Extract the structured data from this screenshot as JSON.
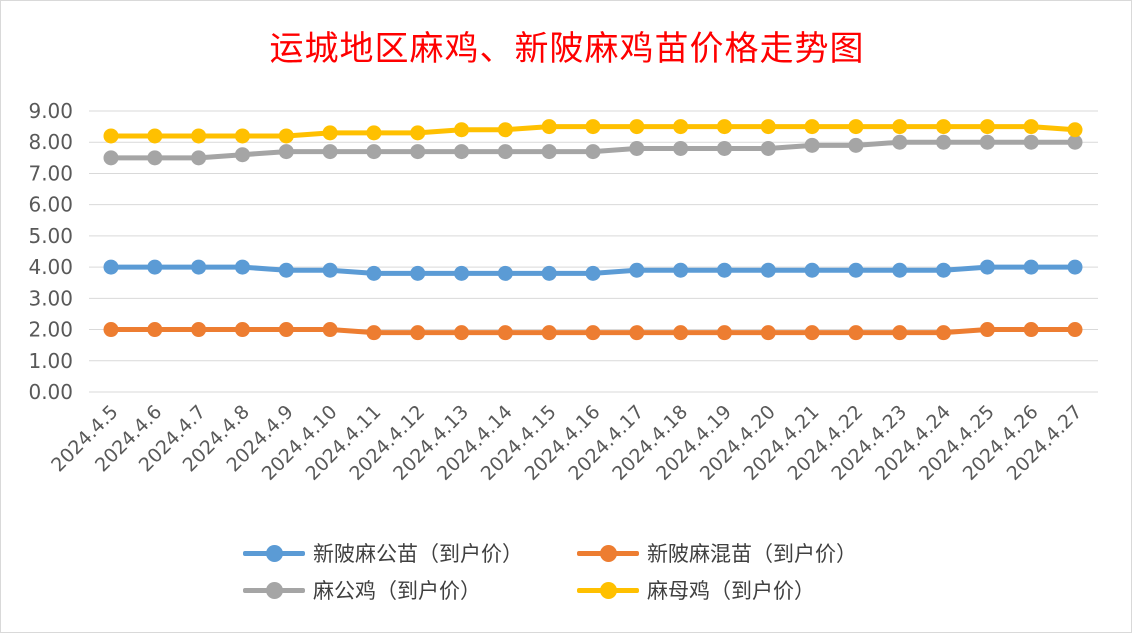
{
  "chart_data": {
    "type": "line",
    "title": "运城地区麻鸡、新陂麻鸡苗价格走势图",
    "categories": [
      "2024.4.5",
      "2024.4.6",
      "2024.4.7",
      "2024.4.8",
      "2024.4.9",
      "2024.4.10",
      "2024.4.11",
      "2024.4.12",
      "2024.4.13",
      "2024.4.14",
      "2024.4.15",
      "2024.4.16",
      "2024.4.17",
      "2024.4.18",
      "2024.4.19",
      "2024.4.20",
      "2024.4.21",
      "2024.4.22",
      "2024.4.23",
      "2024.4.24",
      "2024.4.25",
      "2024.4.26",
      "2024.4.27"
    ],
    "ylim": [
      0,
      9
    ],
    "yticks": [
      "0.00",
      "1.00",
      "2.00",
      "3.00",
      "4.00",
      "5.00",
      "6.00",
      "7.00",
      "8.00",
      "9.00"
    ],
    "grid": true,
    "legend_position": "bottom",
    "series": [
      {
        "name": "新陂麻公苗（到户价）",
        "color": "#5b9bd5",
        "values": [
          4.0,
          4.0,
          4.0,
          4.0,
          3.9,
          3.9,
          3.8,
          3.8,
          3.8,
          3.8,
          3.8,
          3.8,
          3.9,
          3.9,
          3.9,
          3.9,
          3.9,
          3.9,
          3.9,
          3.9,
          4.0,
          4.0,
          4.0
        ]
      },
      {
        "name": "新陂麻混苗（到户价）",
        "color": "#ed7d31",
        "values": [
          2.0,
          2.0,
          2.0,
          2.0,
          2.0,
          2.0,
          1.9,
          1.9,
          1.9,
          1.9,
          1.9,
          1.9,
          1.9,
          1.9,
          1.9,
          1.9,
          1.9,
          1.9,
          1.9,
          1.9,
          2.0,
          2.0,
          2.0
        ]
      },
      {
        "name": "麻公鸡（到户价）",
        "color": "#a5a5a5",
        "values": [
          7.5,
          7.5,
          7.5,
          7.6,
          7.7,
          7.7,
          7.7,
          7.7,
          7.7,
          7.7,
          7.7,
          7.7,
          7.8,
          7.8,
          7.8,
          7.8,
          7.9,
          7.9,
          8.0,
          8.0,
          8.0,
          8.0,
          8.0
        ]
      },
      {
        "name": "麻母鸡（到户价）",
        "color": "#ffc000",
        "values": [
          8.2,
          8.2,
          8.2,
          8.2,
          8.2,
          8.3,
          8.3,
          8.3,
          8.4,
          8.4,
          8.5,
          8.5,
          8.5,
          8.5,
          8.5,
          8.5,
          8.5,
          8.5,
          8.5,
          8.5,
          8.5,
          8.5,
          8.4
        ]
      }
    ]
  }
}
